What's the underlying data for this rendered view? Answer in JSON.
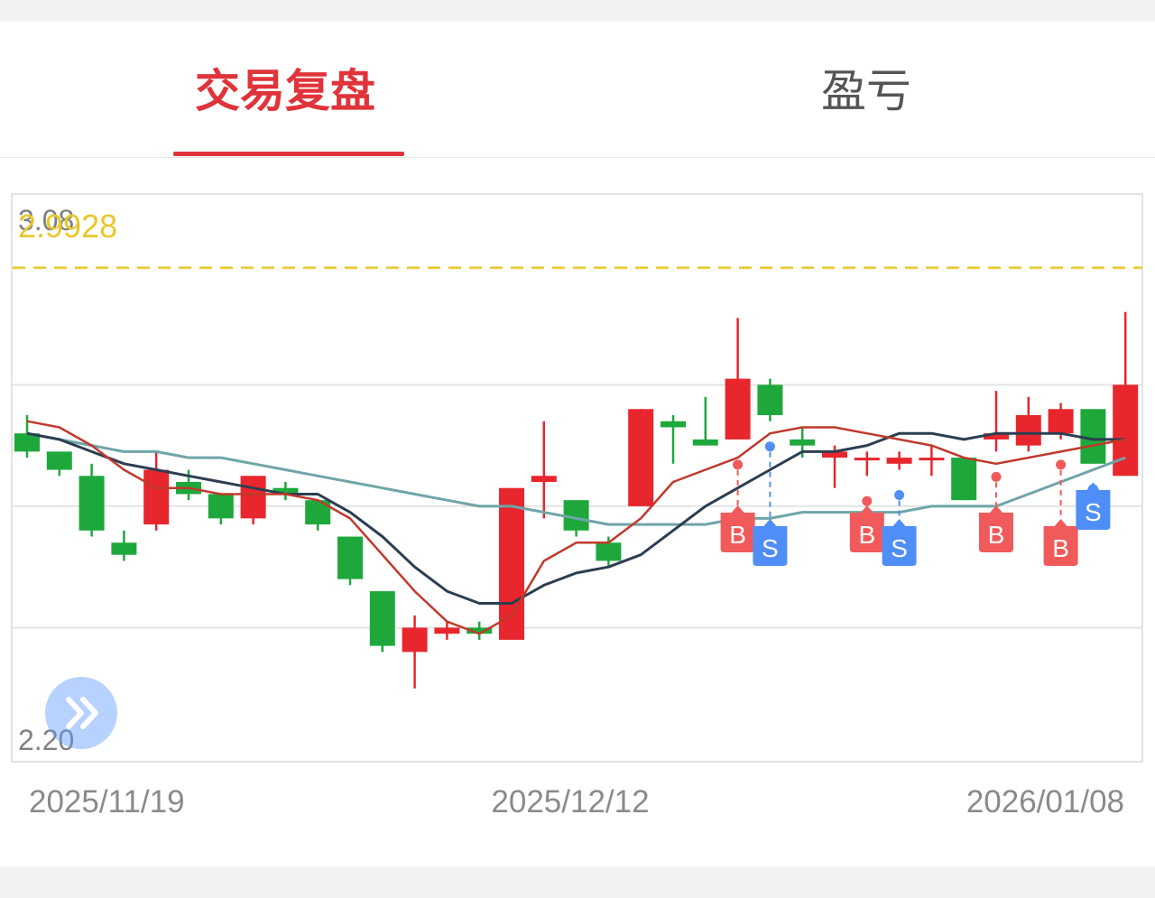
{
  "tabs": {
    "active_label": "交易复盘",
    "inactive_label": "盈亏"
  },
  "colors": {
    "accent": "#e0333a",
    "inactive_text": "#555555",
    "up": "#e8262d",
    "down": "#1ea83c",
    "ma_red": "#c0392b",
    "ma_dark": "#2c3e50",
    "ma_teal": "#6fa5a8",
    "reference_line": "#e8c82a",
    "buy_marker": "#f05a5a",
    "sell_marker": "#4f8ef7"
  },
  "chart_data": {
    "type": "candlestick",
    "y_top_label": "3.08",
    "y_bottom_label": "2.20",
    "ylim": [
      2.2,
      3.08
    ],
    "gridlines": [
      2.8,
      2.6,
      2.4
    ],
    "reference_line": {
      "value": 2.9928,
      "label": "2.9928"
    },
    "x_labels": [
      "2025/11/19",
      "2025/12/12",
      "2026/01/08"
    ],
    "candles": [
      {
        "o": 2.72,
        "h": 2.75,
        "l": 2.68,
        "c": 2.69
      },
      {
        "o": 2.69,
        "h": 2.69,
        "l": 2.65,
        "c": 2.66
      },
      {
        "o": 2.65,
        "h": 2.67,
        "l": 2.55,
        "c": 2.56
      },
      {
        "o": 2.54,
        "h": 2.56,
        "l": 2.51,
        "c": 2.52
      },
      {
        "o": 2.57,
        "h": 2.69,
        "l": 2.56,
        "c": 2.66
      },
      {
        "o": 2.64,
        "h": 2.66,
        "l": 2.61,
        "c": 2.62
      },
      {
        "o": 2.62,
        "h": 2.62,
        "l": 2.57,
        "c": 2.58
      },
      {
        "o": 2.58,
        "h": 2.65,
        "l": 2.57,
        "c": 2.65
      },
      {
        "o": 2.63,
        "h": 2.64,
        "l": 2.61,
        "c": 2.62
      },
      {
        "o": 2.61,
        "h": 2.61,
        "l": 2.56,
        "c": 2.57
      },
      {
        "o": 2.55,
        "h": 2.55,
        "l": 2.47,
        "c": 2.48
      },
      {
        "o": 2.46,
        "h": 2.46,
        "l": 2.36,
        "c": 2.37
      },
      {
        "o": 2.36,
        "h": 2.42,
        "l": 2.3,
        "c": 2.4
      },
      {
        "o": 2.39,
        "h": 2.41,
        "l": 2.38,
        "c": 2.4
      },
      {
        "o": 2.4,
        "h": 2.41,
        "l": 2.38,
        "c": 2.39
      },
      {
        "o": 2.38,
        "h": 2.63,
        "l": 2.38,
        "c": 2.63
      },
      {
        "o": 2.64,
        "h": 2.74,
        "l": 2.58,
        "c": 2.65
      },
      {
        "o": 2.61,
        "h": 2.61,
        "l": 2.55,
        "c": 2.56
      },
      {
        "o": 2.54,
        "h": 2.55,
        "l": 2.5,
        "c": 2.51
      },
      {
        "o": 2.6,
        "h": 2.76,
        "l": 2.6,
        "c": 2.76
      },
      {
        "o": 2.74,
        "h": 2.75,
        "l": 2.67,
        "c": 2.73
      },
      {
        "o": 2.71,
        "h": 2.78,
        "l": 2.7,
        "c": 2.7
      },
      {
        "o": 2.71,
        "h": 2.91,
        "l": 2.71,
        "c": 2.81
      },
      {
        "o": 2.8,
        "h": 2.81,
        "l": 2.74,
        "c": 2.75
      },
      {
        "o": 2.71,
        "h": 2.73,
        "l": 2.68,
        "c": 2.7
      },
      {
        "o": 2.68,
        "h": 2.7,
        "l": 2.63,
        "c": 2.69
      },
      {
        "o": 2.68,
        "h": 2.69,
        "l": 2.65,
        "c": 2.68
      },
      {
        "o": 2.67,
        "h": 2.69,
        "l": 2.66,
        "c": 2.68
      },
      {
        "o": 2.68,
        "h": 2.7,
        "l": 2.65,
        "c": 2.68
      },
      {
        "o": 2.68,
        "h": 2.68,
        "l": 2.61,
        "c": 2.61
      },
      {
        "o": 2.71,
        "h": 2.79,
        "l": 2.69,
        "c": 2.72
      },
      {
        "o": 2.7,
        "h": 2.78,
        "l": 2.69,
        "c": 2.75
      },
      {
        "o": 2.72,
        "h": 2.77,
        "l": 2.71,
        "c": 2.76
      },
      {
        "o": 2.76,
        "h": 2.76,
        "l": 2.67,
        "c": 2.67
      },
      {
        "o": 2.65,
        "h": 2.92,
        "l": 2.65,
        "c": 2.8
      }
    ],
    "ma_red": [
      2.74,
      2.73,
      2.7,
      2.66,
      2.63,
      2.63,
      2.62,
      2.62,
      2.62,
      2.61,
      2.58,
      2.52,
      2.46,
      2.41,
      2.39,
      2.42,
      2.51,
      2.54,
      2.54,
      2.58,
      2.64,
      2.66,
      2.68,
      2.72,
      2.73,
      2.73,
      2.72,
      2.71,
      2.7,
      2.68,
      2.67,
      2.68,
      2.69,
      2.7,
      2.71
    ],
    "ma_dark": [
      2.72,
      2.71,
      2.69,
      2.67,
      2.66,
      2.65,
      2.64,
      2.63,
      2.62,
      2.62,
      2.59,
      2.55,
      2.5,
      2.46,
      2.44,
      2.44,
      2.47,
      2.49,
      2.5,
      2.52,
      2.56,
      2.6,
      2.63,
      2.66,
      2.69,
      2.69,
      2.7,
      2.72,
      2.72,
      2.71,
      2.72,
      2.72,
      2.72,
      2.71,
      2.71
    ],
    "ma_teal": [
      2.72,
      2.71,
      2.7,
      2.69,
      2.69,
      2.68,
      2.68,
      2.67,
      2.66,
      2.65,
      2.64,
      2.63,
      2.62,
      2.61,
      2.6,
      2.6,
      2.59,
      2.58,
      2.57,
      2.57,
      2.57,
      2.57,
      2.58,
      2.58,
      2.59,
      2.59,
      2.59,
      2.59,
      2.6,
      2.6,
      2.6,
      2.62,
      2.64,
      2.66,
      2.68
    ],
    "trade_markers": [
      {
        "i": 22,
        "side": "B",
        "label": "B"
      },
      {
        "i": 23,
        "side": "S",
        "label": "S"
      },
      {
        "i": 26,
        "side": "B",
        "label": "B"
      },
      {
        "i": 27,
        "side": "S",
        "label": "S"
      },
      {
        "i": 30,
        "side": "B",
        "label": "B"
      },
      {
        "i": 32,
        "side": "B",
        "label": "B"
      },
      {
        "i": 33,
        "side": "S",
        "label": "S"
      }
    ]
  }
}
